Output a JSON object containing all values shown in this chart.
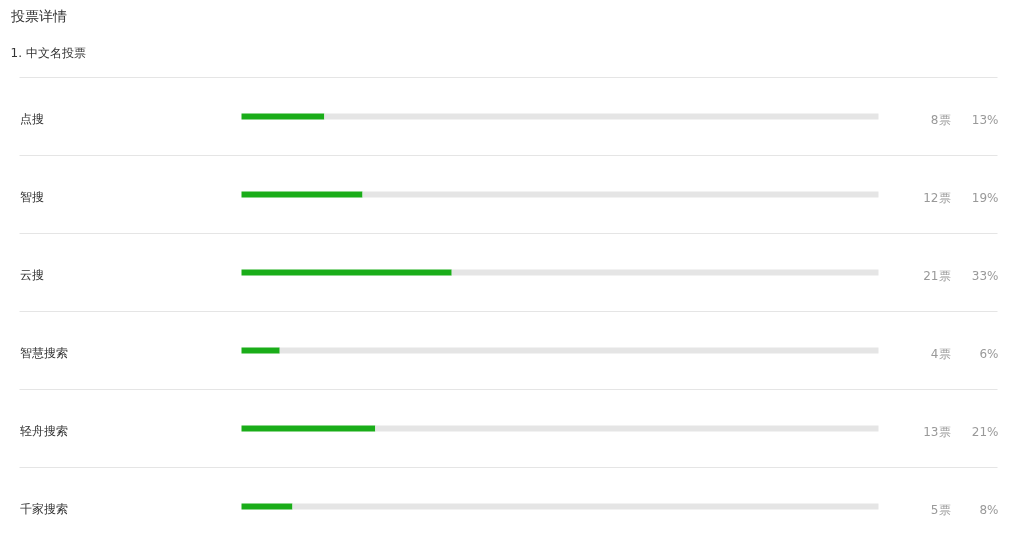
{
  "chart_data": {
    "type": "bar",
    "orientation": "horizontal",
    "stacked": true,
    "title": "投票详情",
    "subtitle": "1. 中文名投票",
    "categories": [
      "点搜",
      "智搜",
      "云搜",
      "智慧搜索",
      "轻舟搜索",
      "千家搜索"
    ],
    "series": [
      {
        "color": "#1aad19",
        "values": [
          13,
          19,
          33,
          6,
          21,
          8
        ],
        "value_labels": [
          "13%",
          "19%",
          "33%",
          "6%",
          "21%",
          "8%"
        ]
      },
      {
        "color": "#e5e5e5",
        "values": [
          87,
          81,
          67,
          94,
          79,
          92
        ]
      }
    ],
    "annotations": [
      "8票",
      "12票",
      "21票",
      "4票",
      "13票",
      "5票"
    ],
    "xlim": [
      0,
      100
    ],
    "tick_labels": "y",
    "grid": "y"
  }
}
